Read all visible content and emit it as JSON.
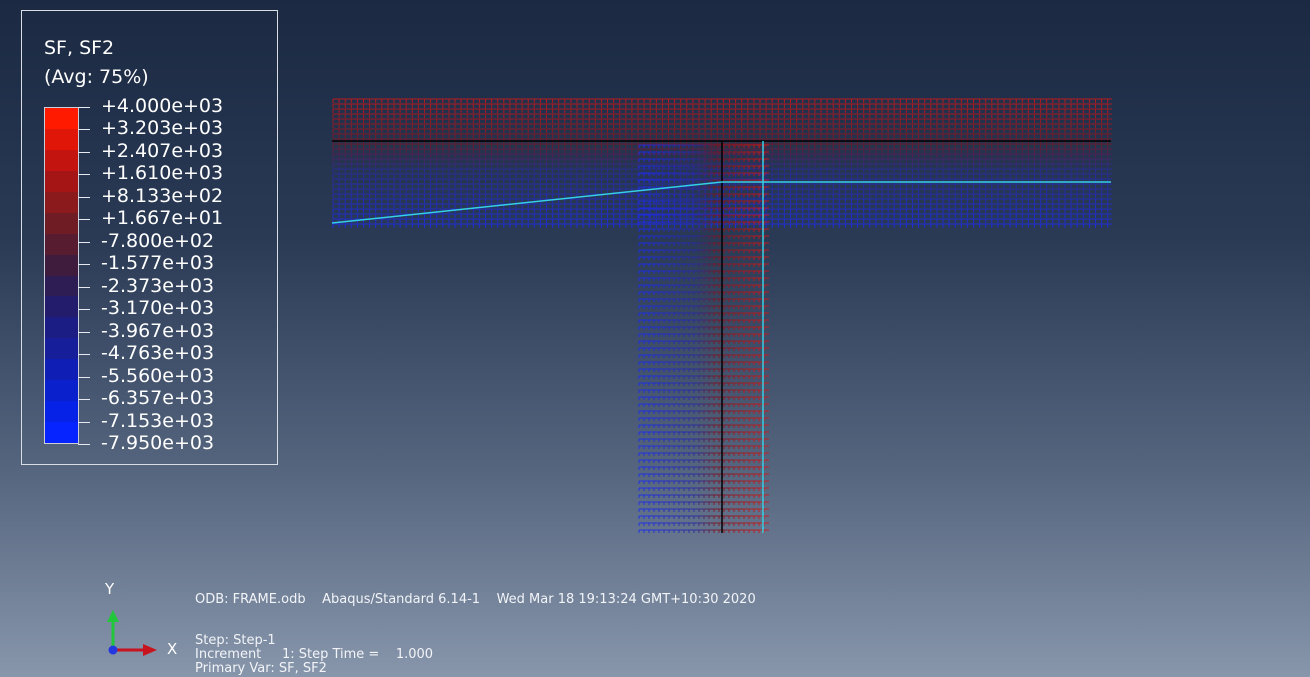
{
  "legend": {
    "title": "SF, SF2",
    "averaging": "(Avg: 75%)",
    "labels": [
      "+4.000e+03",
      "+3.203e+03",
      "+2.407e+03",
      "+1.610e+03",
      "+8.133e+02",
      "+1.667e+01",
      "-7.800e+02",
      "-1.577e+03",
      "-2.373e+03",
      "-3.170e+03",
      "-3.967e+03",
      "-4.763e+03",
      "-5.560e+03",
      "-6.357e+03",
      "-7.153e+03",
      "-7.950e+03"
    ],
    "colors": [
      "#ff1a00",
      "#e01608",
      "#c41410",
      "#a51515",
      "#8a1a1c",
      "#701c25",
      "#571c30",
      "#3f1c3e",
      "#2e1c55",
      "#231c6c",
      "#1c1d84",
      "#161e9a",
      "#0f1eb4",
      "#0920cc",
      "#0522e6",
      "#0624ff"
    ]
  },
  "triad": {
    "x_label": "X",
    "y_label": "Y"
  },
  "info": {
    "odb": "ODB: FRAME.odb",
    "solver": "Abaqus/Standard 6.14-1",
    "datetime": "Wed Mar 18 19:13:24 GMT+10:30 2020"
  },
  "step": {
    "step_line": "Step: Step-1",
    "increment_line": "Increment     1: Step Time =    1.000",
    "primary_var_line": "Primary Var: SF, SF2"
  },
  "theme": {
    "beam_line": "#000000",
    "deformed_shape": "#34d0e6",
    "triad_x": "#c8141e",
    "triad_y": "#22c63a",
    "triad_z": "#2438e0"
  }
}
